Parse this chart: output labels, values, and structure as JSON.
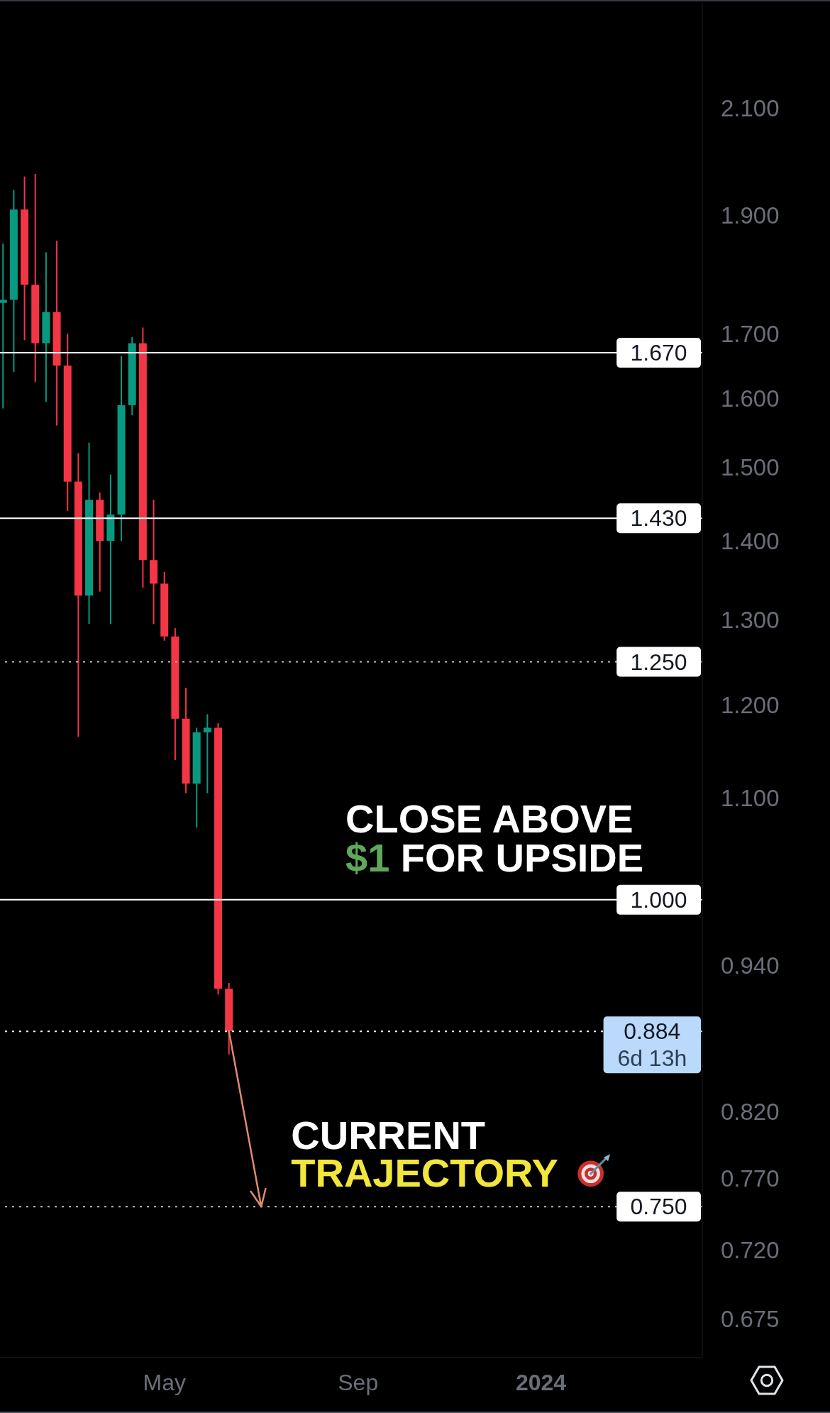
{
  "chart_data": {
    "type": "candlestick",
    "x": [
      "2023-01-16",
      "2023-01-23",
      "2023-01-30",
      "2023-02-06",
      "2023-02-13",
      "2023-02-20",
      "2023-02-27",
      "2023-03-06",
      "2023-03-13",
      "2023-03-20",
      "2023-03-27",
      "2023-04-03",
      "2023-04-10",
      "2023-04-17",
      "2023-04-24",
      "2023-05-01",
      "2023-05-08",
      "2023-05-15",
      "2023-05-22",
      "2023-05-29",
      "2023-06-05",
      "2023-06-12"
    ],
    "ohlc": [
      [
        1.75,
        1.85,
        1.585,
        1.755
      ],
      [
        1.755,
        1.945,
        1.64,
        1.91
      ],
      [
        1.91,
        1.97,
        1.69,
        1.78
      ],
      [
        1.78,
        1.975,
        1.625,
        1.685
      ],
      [
        1.685,
        1.835,
        1.595,
        1.735
      ],
      [
        1.735,
        1.855,
        1.56,
        1.65
      ],
      [
        1.65,
        1.7,
        1.44,
        1.48
      ],
      [
        1.48,
        1.52,
        1.165,
        1.33
      ],
      [
        1.33,
        1.535,
        1.295,
        1.455
      ],
      [
        1.455,
        1.465,
        1.335,
        1.4
      ],
      [
        1.4,
        1.49,
        1.295,
        1.435
      ],
      [
        1.435,
        1.665,
        1.4,
        1.59
      ],
      [
        1.59,
        1.695,
        1.575,
        1.685
      ],
      [
        1.685,
        1.71,
        1.34,
        1.375
      ],
      [
        1.375,
        1.455,
        1.295,
        1.345
      ],
      [
        1.345,
        1.36,
        1.275,
        1.28
      ],
      [
        1.28,
        1.29,
        1.14,
        1.185
      ],
      [
        1.185,
        1.22,
        1.105,
        1.115
      ],
      [
        1.115,
        1.175,
        1.07,
        1.17
      ],
      [
        1.17,
        1.19,
        1.105,
        1.175
      ],
      [
        1.175,
        1.18,
        0.915,
        0.92
      ],
      [
        0.92,
        0.925,
        0.865,
        0.884
      ]
    ],
    "colors": [
      "#089981",
      "#089981",
      "#f23645",
      "#f23645",
      "#089981",
      "#f23645",
      "#f23645",
      "#f23645",
      "#089981",
      "#f23645",
      "#089981",
      "#089981",
      "#089981",
      "#f23645",
      "#f23645",
      "#f23645",
      "#f23645",
      "#f23645",
      "#089981",
      "#089981",
      "#f23645",
      "#f23645"
    ],
    "xlim": [
      "2023-01-14",
      "2024-04-15"
    ],
    "xticks": [
      {
        "value": "2023-05-01",
        "label": "May"
      },
      {
        "value": "2023-09-04",
        "label": "Sep"
      },
      {
        "value": "2024-01-01",
        "label": "2024"
      }
    ],
    "ylim": [
      0.651,
      2.32
    ],
    "yticks": [
      {
        "value": 0.675,
        "label": "0.675"
      },
      {
        "value": 0.72,
        "label": "0.720"
      },
      {
        "value": 0.77,
        "label": "0.770"
      },
      {
        "value": 0.82,
        "label": "0.820"
      },
      {
        "value": 0.94,
        "label": "0.940"
      },
      {
        "value": 1.1,
        "label": "1.100"
      },
      {
        "value": 1.2,
        "label": "1.200"
      },
      {
        "value": 1.3,
        "label": "1.300"
      },
      {
        "value": 1.4,
        "label": "1.400"
      },
      {
        "value": 1.5,
        "label": "1.500"
      },
      {
        "value": 1.6,
        "label": "1.600"
      },
      {
        "value": 1.7,
        "label": "1.700"
      },
      {
        "value": 1.9,
        "label": "1.900"
      },
      {
        "value": 2.1,
        "label": "2.100"
      }
    ],
    "log": true,
    "ref_lines": [
      {
        "axis": "y",
        "value": 1.67,
        "label": "1.670",
        "color": "#ffffff",
        "line_style": "solid"
      },
      {
        "axis": "y",
        "value": 1.43,
        "label": "1.430",
        "color": "#ffffff",
        "line_style": "solid"
      },
      {
        "axis": "y",
        "value": 1.25,
        "label": "1.250",
        "color": "#bdbdbd",
        "line_style": "dotted"
      },
      {
        "axis": "y",
        "value": 1.0,
        "label": "1.000",
        "color": "#ffffff",
        "line_style": "solid"
      },
      {
        "axis": "y",
        "value": 0.884,
        "label": "0.884\n6d 13h",
        "color": "#ffffff",
        "line_style": "dotted"
      },
      {
        "axis": "y",
        "value": 0.75,
        "label": "0.750",
        "color": "#bdbdbd",
        "line_style": "dotted"
      }
    ],
    "annotations": [
      "CLOSE ABOVE $1 FOR UPSIDE",
      {
        "text": "CURRENT TRAJECTORY",
        "x": "2023-07-03",
        "y": 0.75
      }
    ]
  }
}
